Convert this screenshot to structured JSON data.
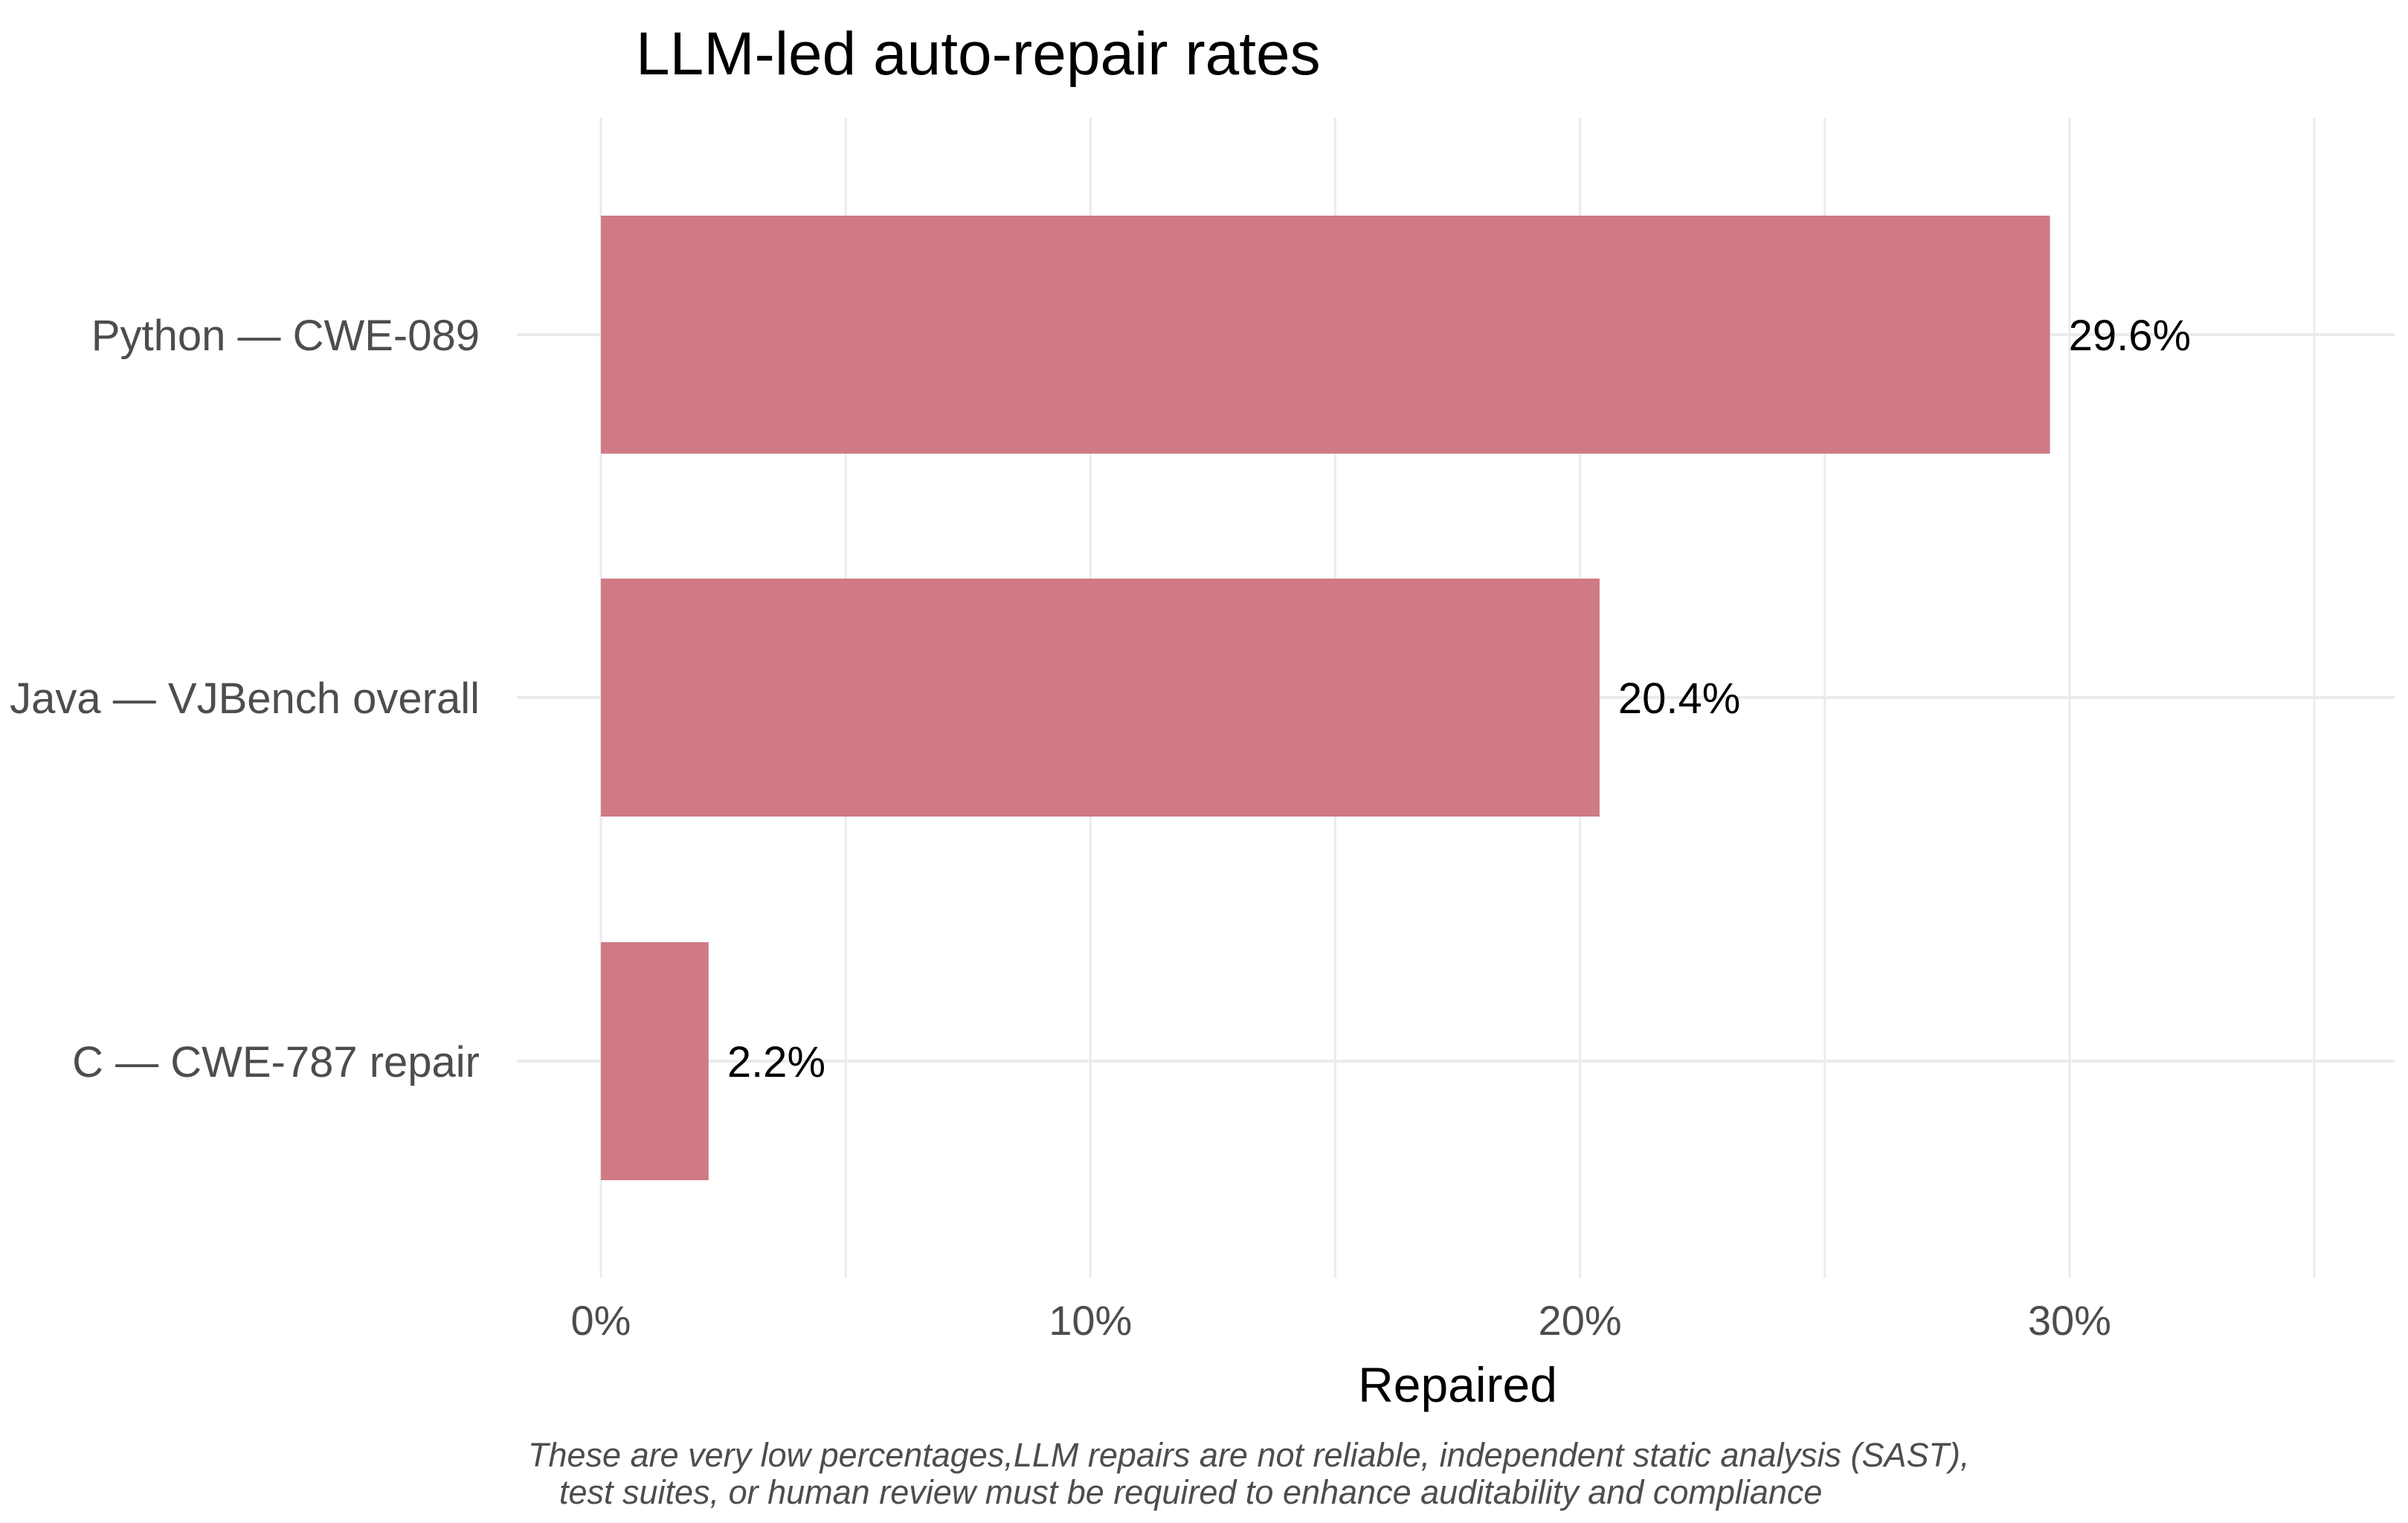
{
  "chart_data": {
    "type": "bar",
    "orientation": "horizontal",
    "title": "LLM-led auto-repair rates",
    "xlabel": "Repaired",
    "ylabel": "",
    "categories": [
      "Python — CWE-089",
      "Java — VJBench overall",
      "C — CWE-787 repair"
    ],
    "values": [
      29.6,
      20.4,
      2.2
    ],
    "value_labels": [
      "29.6%",
      "20.4%",
      "2.2%"
    ],
    "xlim": [
      0,
      35
    ],
    "x_ticks": [
      0,
      10,
      20,
      30
    ],
    "x_tick_labels": [
      "0%",
      "10%",
      "20%",
      "30%"
    ],
    "x_minor_ticks": [
      5,
      15,
      25,
      35
    ],
    "grid": true,
    "legend": "none",
    "caption": [
      "These are very low percentages,LLM repairs are not reliable, independent static analysis (SAST),",
      "test suites, or human review must be required to enhance auditability and compliance"
    ],
    "colors": {
      "bar": "#d07a85",
      "grid": "#ebebeb",
      "text": "#000000",
      "axis_text": "#4d4d4d",
      "caption": "#4d4d4d",
      "background": "#ffffff"
    }
  }
}
